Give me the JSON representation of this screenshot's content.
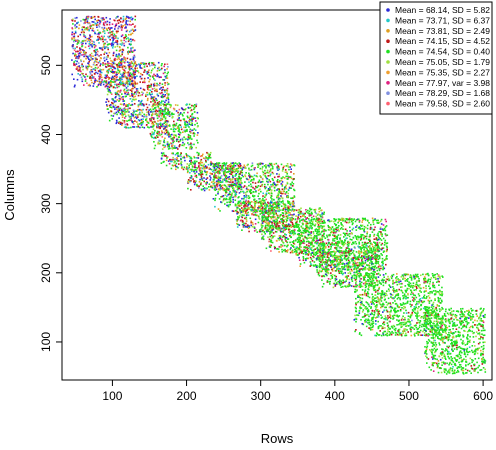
{
  "chart_data": {
    "type": "scatter",
    "xlabel": "Rows",
    "ylabel": "Columns",
    "xlim": [
      32,
      612
    ],
    "ylim": [
      45,
      580
    ],
    "xticks": [
      100,
      200,
      300,
      400,
      500,
      600
    ],
    "yticks": [
      100,
      200,
      300,
      400,
      500
    ],
    "grid": false,
    "legend_position": "top-right",
    "series": [
      {
        "name": "Mean = 68.14, SD = 5.82",
        "color": "#2a2ad8"
      },
      {
        "name": "Mean = 73.71, SD = 6.37",
        "color": "#22c8c8"
      },
      {
        "name": "Mean = 73.81, SD = 2.49",
        "color": "#e0a020"
      },
      {
        "name": "Mean = 74.15, SD = 4.52",
        "color": "#c01818"
      },
      {
        "name": "Mean = 74.54, SD = 0.40",
        "color": "#20e020"
      },
      {
        "name": "Mean = 75.05, SD = 1.79",
        "color": "#a0e040"
      },
      {
        "name": "Mean = 75.35, SD = 2.27",
        "color": "#f0a030"
      },
      {
        "name": "Mean = 77.97, var = 3.98",
        "color": "#e02080"
      },
      {
        "name": "Mean = 78.29, SD = 1.68",
        "color": "#8090e0"
      },
      {
        "name": "Mean = 79.58, SD = 2.60",
        "color": "#ff6070"
      }
    ],
    "blocks": [
      {
        "x": [
          44,
          130
        ],
        "y": [
          470,
          572
        ],
        "mix": [
          0.22,
          0.1,
          0.1,
          0.2,
          0.08,
          0.05,
          0.08,
          0.1,
          0.05,
          0.02
        ]
      },
      {
        "x": [
          90,
          175
        ],
        "y": [
          410,
          505
        ],
        "mix": [
          0.2,
          0.08,
          0.08,
          0.18,
          0.2,
          0.08,
          0.06,
          0.06,
          0.04,
          0.02
        ]
      },
      {
        "x": [
          150,
          215
        ],
        "y": [
          380,
          445
        ],
        "mix": [
          0.1,
          0.05,
          0.05,
          0.12,
          0.45,
          0.1,
          0.05,
          0.04,
          0.02,
          0.02
        ]
      },
      {
        "x": [
          165,
          232
        ],
        "y": [
          350,
          375
        ],
        "mix": [
          0.12,
          0.06,
          0.06,
          0.14,
          0.38,
          0.1,
          0.06,
          0.04,
          0.02,
          0.02
        ]
      },
      {
        "x": [
          200,
          275
        ],
        "y": [
          320,
          360
        ],
        "mix": [
          0.15,
          0.06,
          0.06,
          0.16,
          0.32,
          0.09,
          0.06,
          0.06,
          0.02,
          0.02
        ]
      },
      {
        "x": [
          235,
          345
        ],
        "y": [
          290,
          360
        ],
        "mix": [
          0.08,
          0.04,
          0.04,
          0.12,
          0.5,
          0.12,
          0.04,
          0.03,
          0.02,
          0.01
        ]
      },
      {
        "x": [
          265,
          345
        ],
        "y": [
          260,
          305
        ],
        "mix": [
          0.12,
          0.05,
          0.05,
          0.18,
          0.35,
          0.12,
          0.06,
          0.04,
          0.02,
          0.01
        ]
      },
      {
        "x": [
          300,
          385
        ],
        "y": [
          230,
          295
        ],
        "mix": [
          0.06,
          0.03,
          0.03,
          0.12,
          0.55,
          0.12,
          0.04,
          0.03,
          0.01,
          0.01
        ]
      },
      {
        "x": [
          345,
          470
        ],
        "y": [
          205,
          280
        ],
        "mix": [
          0.04,
          0.02,
          0.02,
          0.08,
          0.66,
          0.12,
          0.03,
          0.02,
          0.005,
          0.005
        ]
      },
      {
        "x": [
          375,
          460
        ],
        "y": [
          180,
          245
        ],
        "mix": [
          0.06,
          0.03,
          0.03,
          0.1,
          0.58,
          0.12,
          0.04,
          0.02,
          0.01,
          0.01
        ]
      },
      {
        "x": [
          425,
          545
        ],
        "y": [
          110,
          200
        ],
        "mix": [
          0.02,
          0.01,
          0.02,
          0.06,
          0.72,
          0.13,
          0.02,
          0.01,
          0.005,
          0.005
        ]
      },
      {
        "x": [
          520,
          602
        ],
        "y": [
          55,
          150
        ],
        "mix": [
          0.02,
          0.01,
          0.02,
          0.05,
          0.74,
          0.13,
          0.02,
          0.01,
          0.0,
          0.0
        ]
      }
    ]
  }
}
